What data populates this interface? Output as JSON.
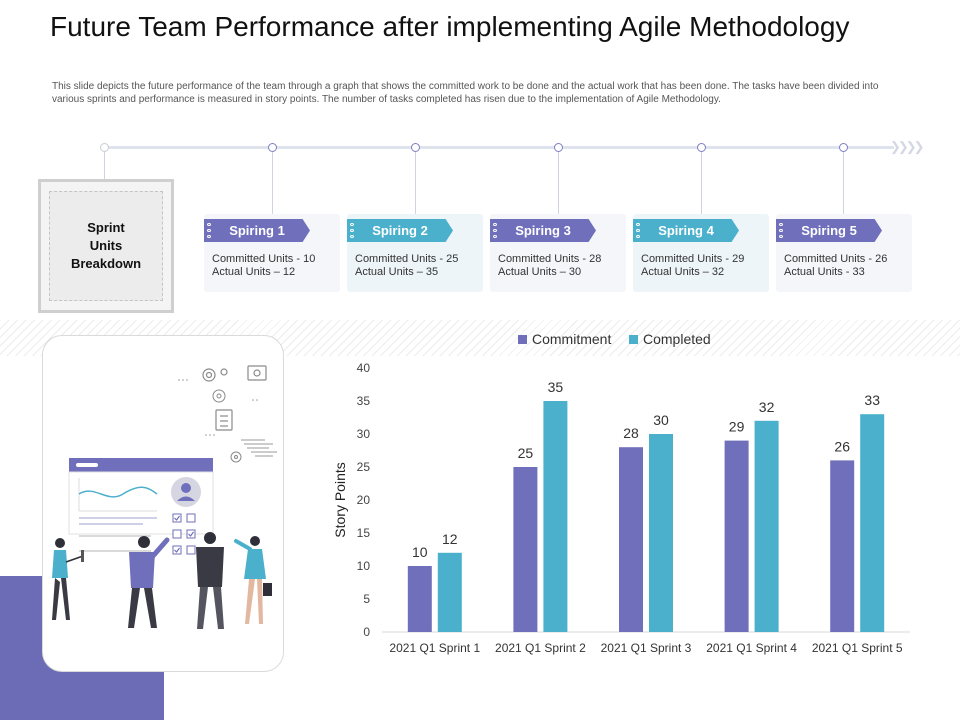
{
  "slide": {
    "title": "Future Team Performance after implementing Agile Methodology",
    "description": "This slide depicts the future performance of the team through a graph that shows the committed work to be done and the actual work that has been done. The tasks have been divided into various sprints and performance is measured in story points. The number of tasks completed has risen due to the implementation of Agile Methodology."
  },
  "breakdown": {
    "label": "Sprint\nUnits\nBreakdown"
  },
  "sprints": [
    {
      "name": "Spiring 1",
      "committed": "Committed Units - 10",
      "actual": "Actual Units – 12"
    },
    {
      "name": "Spiring 2",
      "committed": "Committed Units - 25",
      "actual": "Actual Units – 35"
    },
    {
      "name": "Spiring 3",
      "committed": "Committed Units - 28",
      "actual": "Actual Units – 30"
    },
    {
      "name": "Spiring 4",
      "committed": "Committed Units - 29",
      "actual": "Actual Units – 32"
    },
    {
      "name": "Spiring 5",
      "committed": "Committed Units - 26",
      "actual": "Actual Units - 33"
    }
  ],
  "colors": {
    "commitment": "#6f6fbc",
    "completed": "#4ab0cc",
    "accent": "#6b6cb5"
  },
  "chart_data": {
    "type": "bar",
    "categories": [
      "2021 Q1 Sprint 1",
      "2021 Q1 Sprint 2",
      "2021 Q1 Sprint 3",
      "2021 Q1 Sprint 4",
      "2021 Q1 Sprint 5"
    ],
    "series": [
      {
        "name": "Commitment",
        "values": [
          10,
          25,
          28,
          29,
          26
        ]
      },
      {
        "name": "Completed",
        "values": [
          12,
          35,
          30,
          32,
          33
        ]
      }
    ],
    "title": "",
    "xlabel": "",
    "ylabel": "Story Points",
    "ylim": [
      0,
      40
    ],
    "yticks": [
      0,
      5,
      10,
      15,
      20,
      25,
      30,
      35,
      40
    ],
    "legend": "top",
    "grid": false
  }
}
